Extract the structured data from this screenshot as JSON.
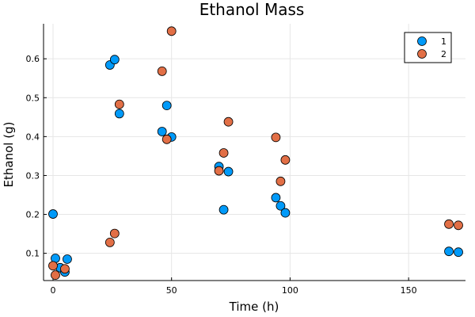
{
  "chart_data": {
    "type": "scatter",
    "title": "Ethanol Mass",
    "xlabel": "Time (h)",
    "ylabel": "Ethanol (g)",
    "xlim": [
      -4,
      174
    ],
    "ylim": [
      0.03,
      0.69
    ],
    "xticks": [
      0,
      50,
      100,
      150
    ],
    "yticks": [
      0.1,
      0.2,
      0.3,
      0.4,
      0.5,
      0.6
    ],
    "grid": true,
    "legend_position": "top-right",
    "series": [
      {
        "name": "1",
        "color": "#009af9",
        "x": [
          0,
          1,
          3,
          5,
          6,
          24,
          26,
          28,
          46,
          48,
          50,
          70,
          72,
          74,
          94,
          96,
          98,
          167,
          171
        ],
        "y": [
          0.201,
          0.087,
          0.063,
          0.052,
          0.085,
          0.584,
          0.598,
          0.459,
          0.413,
          0.48,
          0.399,
          0.323,
          0.212,
          0.31,
          0.243,
          0.222,
          0.204,
          0.105,
          0.103
        ]
      },
      {
        "name": "2",
        "color": "#e26f46",
        "x": [
          0,
          1,
          5,
          24,
          26,
          28,
          46,
          48,
          50,
          70,
          72,
          74,
          94,
          96,
          98,
          167,
          171
        ],
        "y": [
          0.068,
          0.044,
          0.06,
          0.128,
          0.151,
          0.483,
          0.568,
          0.393,
          0.671,
          0.312,
          0.358,
          0.438,
          0.398,
          0.285,
          0.34,
          0.175,
          0.172
        ]
      }
    ]
  }
}
